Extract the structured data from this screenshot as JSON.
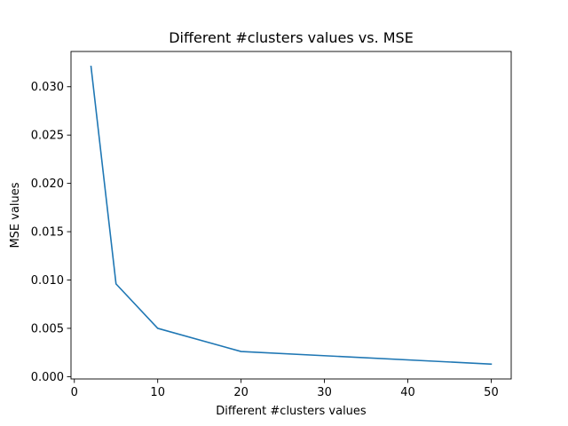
{
  "chart_data": {
    "type": "line",
    "title": "Different #clusters values vs. MSE",
    "xlabel": "Different #clusters values",
    "ylabel": "MSE values",
    "x": [
      2,
      5,
      10,
      20,
      50
    ],
    "series": [
      {
        "values": [
          0.0321,
          0.0096,
          0.005,
          0.0026,
          0.0013
        ],
        "color": "#1f77b4"
      }
    ],
    "xlim": [
      -0.4,
      52.4
    ],
    "ylim": [
      -0.00024,
      0.03365
    ],
    "xticks": [
      0,
      10,
      20,
      30,
      40,
      50
    ],
    "xtick_labels": [
      "0",
      "10",
      "20",
      "30",
      "40",
      "50"
    ],
    "yticks": [
      0.0,
      0.005,
      0.01,
      0.015,
      0.02,
      0.025,
      0.03
    ],
    "ytick_labels": [
      "0.000",
      "0.005",
      "0.010",
      "0.015",
      "0.020",
      "0.025",
      "0.030"
    ],
    "grid": false,
    "legend": "none"
  }
}
